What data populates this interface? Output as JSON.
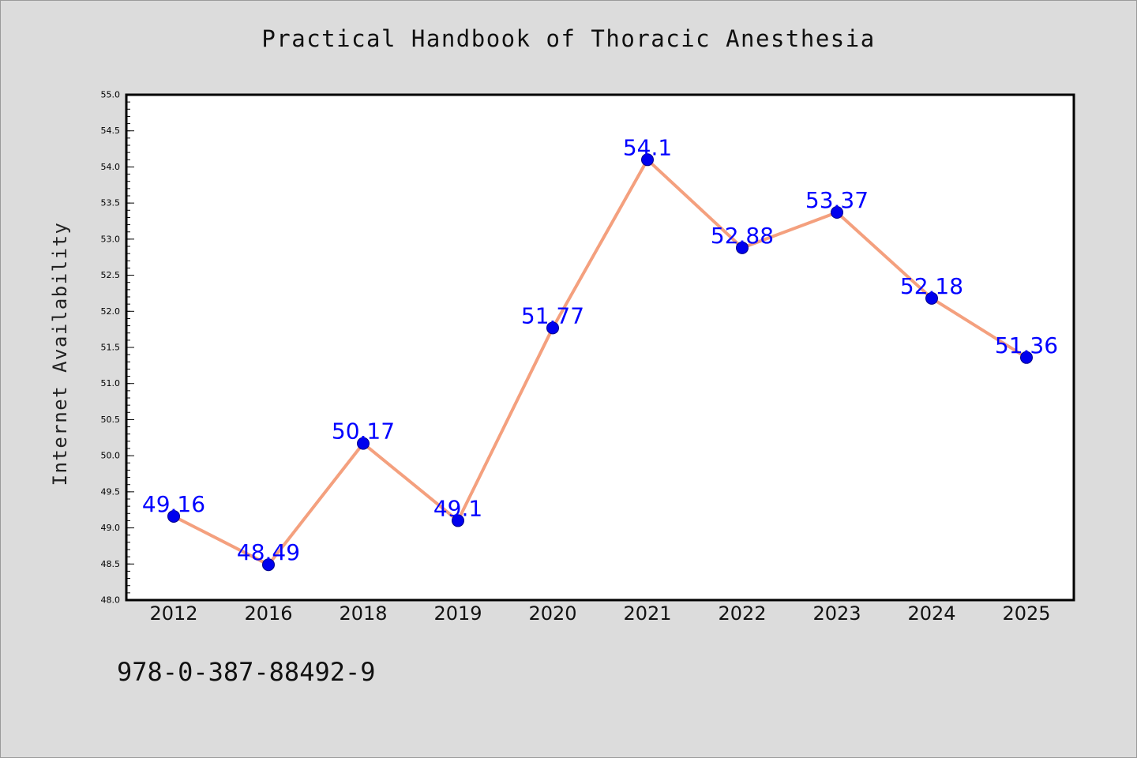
{
  "chart_data": {
    "type": "line",
    "title": "Practical Handbook of Thoracic Anesthesia",
    "xlabel": "",
    "ylabel": "Internet Availability",
    "categories": [
      "2012",
      "2016",
      "2018",
      "2019",
      "2020",
      "2021",
      "2022",
      "2023",
      "2024",
      "2025"
    ],
    "series": [
      {
        "values": [
          49.16,
          48.49,
          50.17,
          49.1,
          51.77,
          54.1,
          52.88,
          53.37,
          52.18,
          51.36
        ],
        "data_labels": [
          "49.16",
          "48.49",
          "50.17",
          "49.1",
          "51.77",
          "54.1",
          "52.88",
          "53.37",
          "52.18",
          "51.36"
        ],
        "line_color": "#f4a07e",
        "marker_color": "#0000ee"
      }
    ],
    "ylim": [
      48.0,
      55.0
    ],
    "y_ticks": [
      "48.0",
      "48.5",
      "49.0",
      "49.5",
      "50.0",
      "50.5",
      "51.0",
      "51.5",
      "52.0",
      "52.5",
      "53.0",
      "53.5",
      "54.0",
      "54.5",
      "55.0"
    ],
    "grid": false,
    "legend": "none",
    "label_color": "#0000ff",
    "footer_text": "978-0-387-88492-9"
  }
}
